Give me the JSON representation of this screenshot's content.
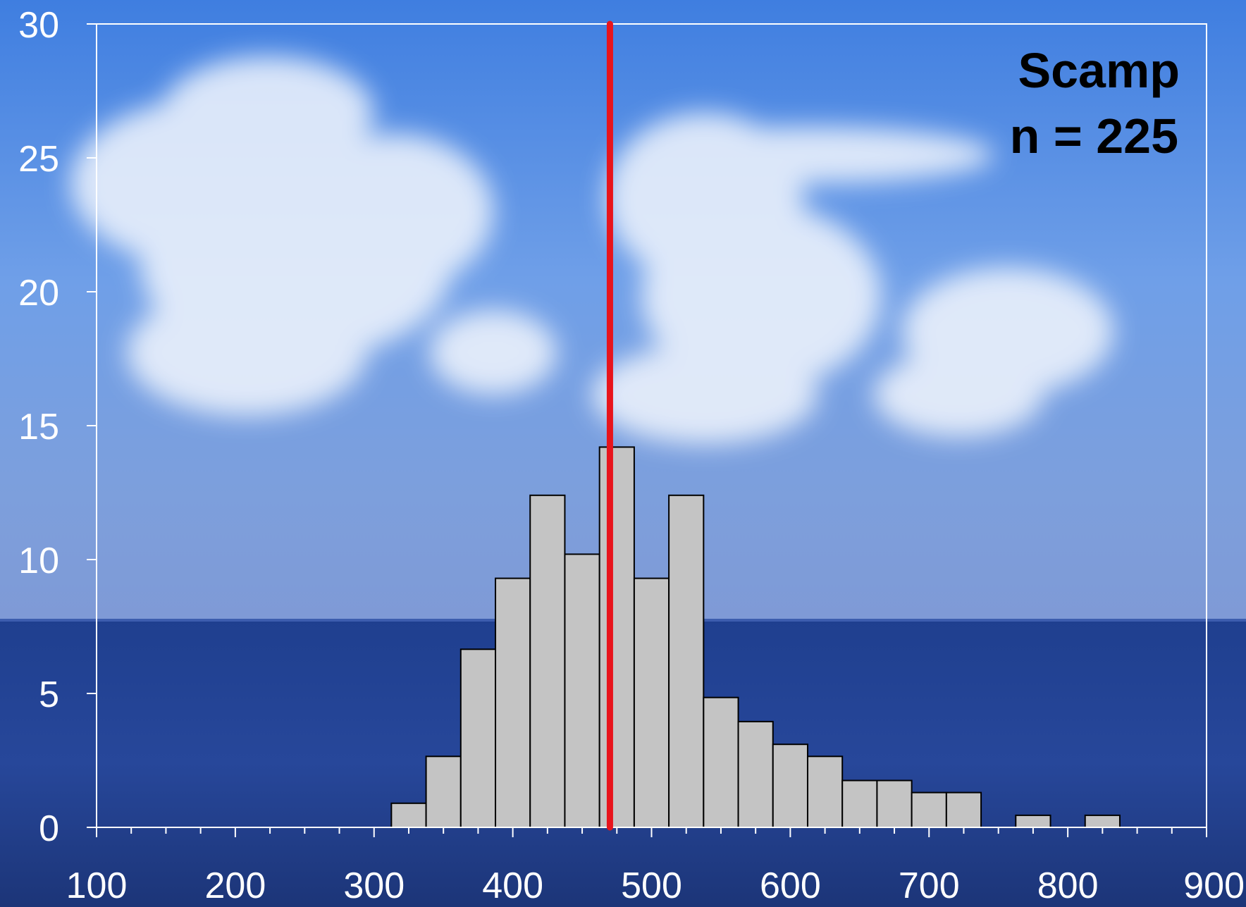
{
  "chart_data": {
    "type": "bar",
    "subtype": "histogram",
    "bin_width": 25,
    "bins": [
      {
        "start": 312.5,
        "end": 337.5,
        "value": 0.9
      },
      {
        "start": 337.5,
        "end": 362.5,
        "value": 2.65
      },
      {
        "start": 362.5,
        "end": 387.5,
        "value": 6.65
      },
      {
        "start": 387.5,
        "end": 412.5,
        "value": 9.3
      },
      {
        "start": 412.5,
        "end": 437.5,
        "value": 12.4
      },
      {
        "start": 437.5,
        "end": 462.5,
        "value": 10.2
      },
      {
        "start": 462.5,
        "end": 487.5,
        "value": 14.2
      },
      {
        "start": 487.5,
        "end": 512.5,
        "value": 9.3
      },
      {
        "start": 512.5,
        "end": 537.5,
        "value": 12.4
      },
      {
        "start": 537.5,
        "end": 562.5,
        "value": 4.85
      },
      {
        "start": 562.5,
        "end": 587.5,
        "value": 3.95
      },
      {
        "start": 587.5,
        "end": 612.5,
        "value": 3.1
      },
      {
        "start": 612.5,
        "end": 637.5,
        "value": 2.65
      },
      {
        "start": 637.5,
        "end": 662.5,
        "value": 1.75
      },
      {
        "start": 662.5,
        "end": 687.5,
        "value": 1.75
      },
      {
        "start": 687.5,
        "end": 712.5,
        "value": 1.3
      },
      {
        "start": 712.5,
        "end": 737.5,
        "value": 1.3
      },
      {
        "start": 762.5,
        "end": 787.5,
        "value": 0.45
      },
      {
        "start": 812.5,
        "end": 837.5,
        "value": 0.45
      }
    ],
    "reference_line": {
      "x": 470,
      "color": "#e8141c"
    },
    "xlim": [
      100,
      900
    ],
    "ylim": [
      0,
      30
    ],
    "x_ticks": [
      "100",
      "200",
      "300",
      "400",
      "500",
      "600",
      "700",
      "800",
      "900"
    ],
    "x_tick_values": [
      100,
      200,
      300,
      400,
      500,
      600,
      700,
      800,
      900
    ],
    "x_minor_tick_step": 25,
    "y_ticks": [
      "0",
      "5",
      "10",
      "15",
      "20",
      "25",
      "30"
    ],
    "y_tick_values": [
      0,
      5,
      10,
      15,
      20,
      25,
      30
    ],
    "annotation": [
      "Scamp",
      "n = 225"
    ],
    "title": "",
    "xlabel": "",
    "ylabel": "",
    "grid": false,
    "bar_color": "#c4c4c4",
    "bar_edge_color": "#000000",
    "axis_color": "#ffffff"
  }
}
